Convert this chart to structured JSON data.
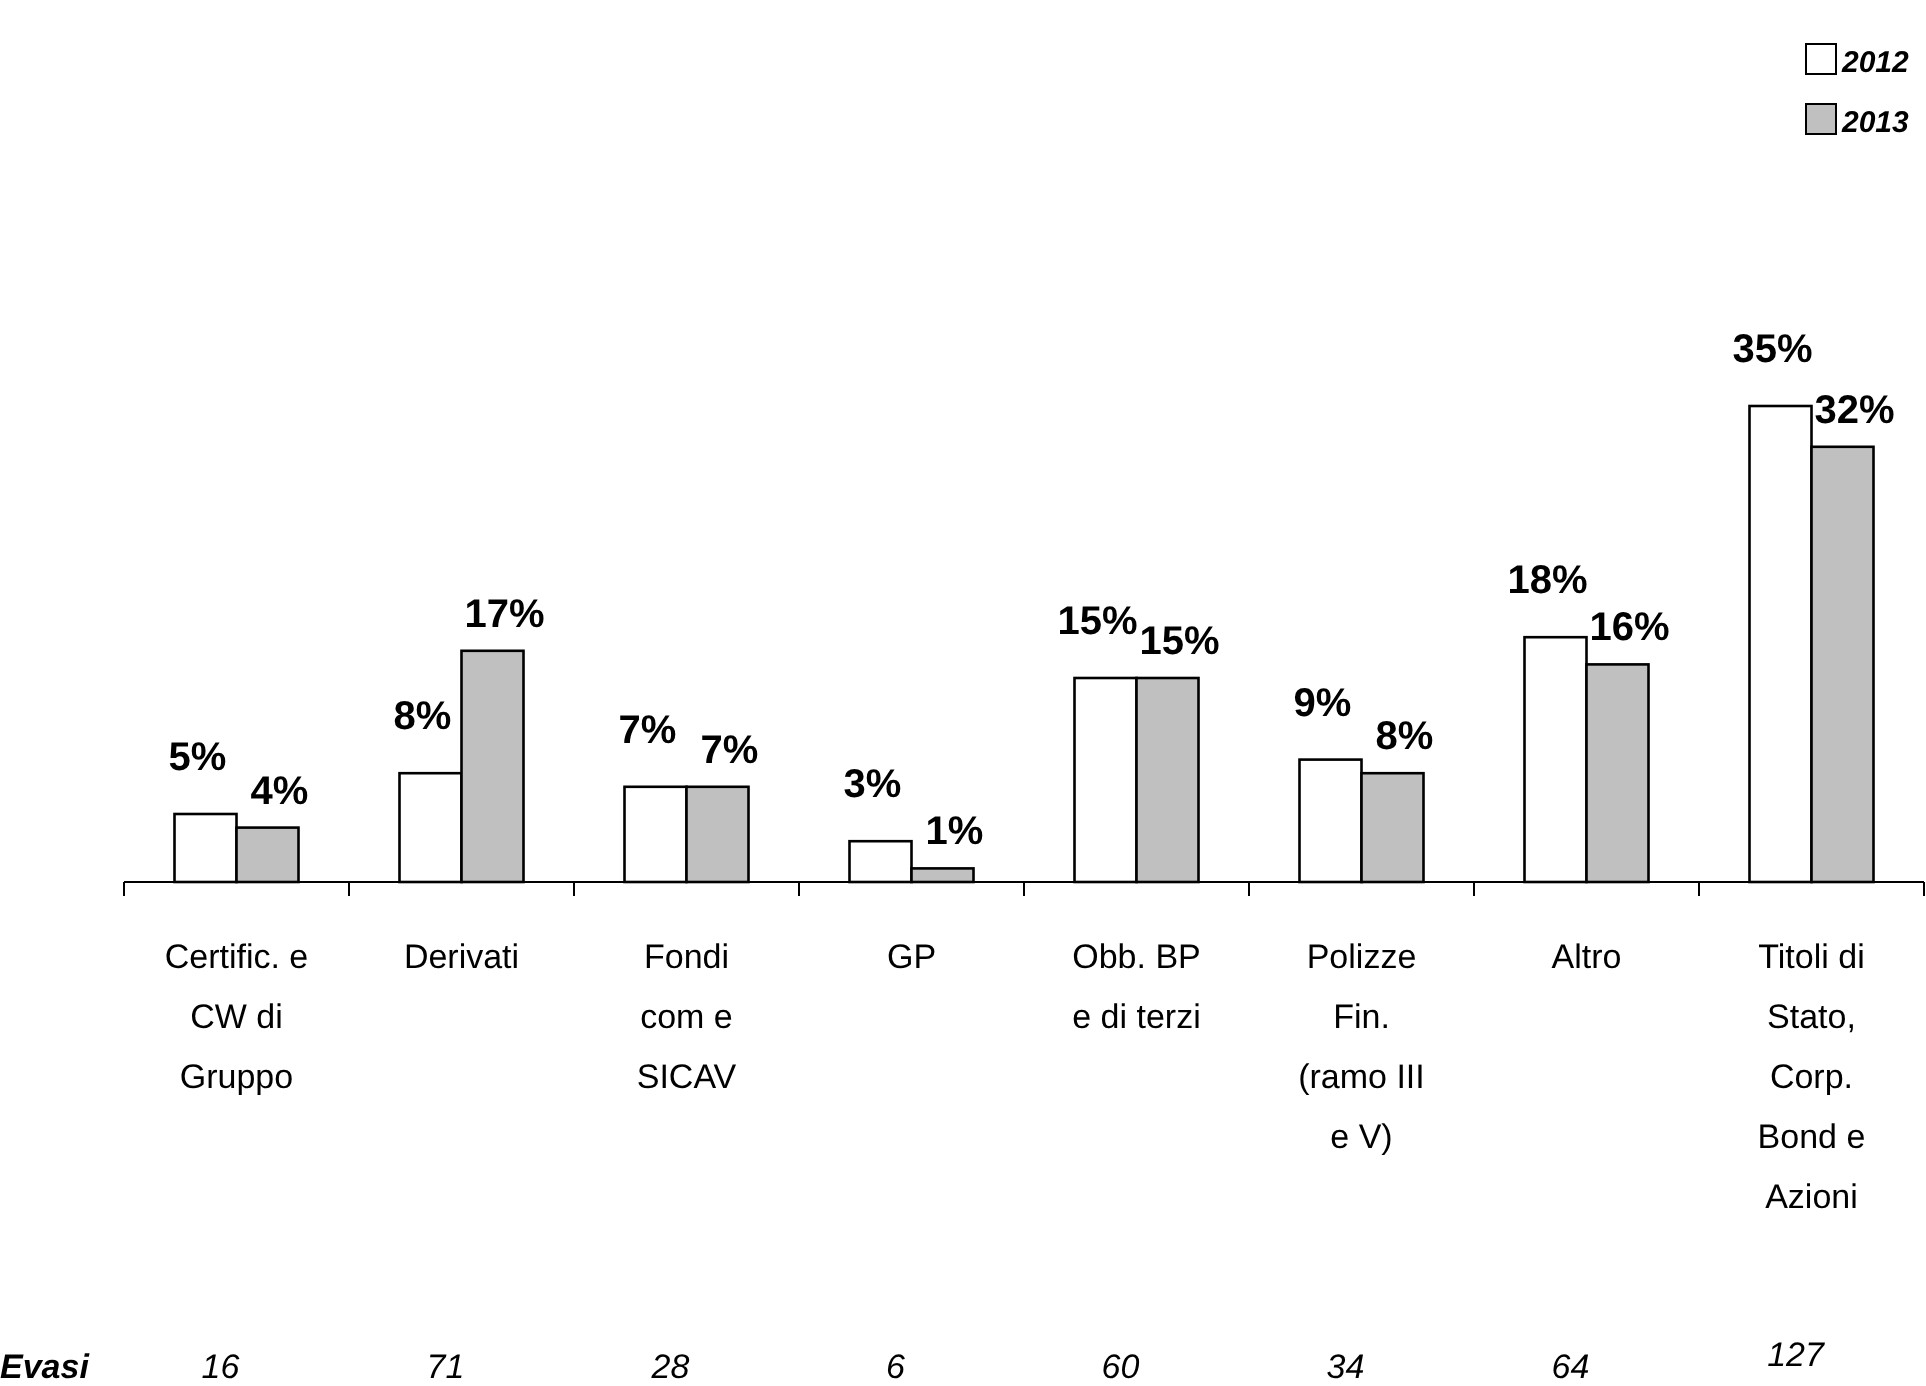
{
  "chart_data": {
    "type": "bar",
    "categories": [
      "Certific. e\nCW di\nGruppo",
      "Derivati",
      "Fondi\ncom e\nSICAV",
      "GP",
      "Obb. BP\ne di terzi",
      "Polizze\nFin.\n(ramo III\ne V)",
      "Altro",
      "Titoli di\nStato,\nCorp.\nBond e\nAzioni"
    ],
    "series": [
      {
        "name": "2012",
        "color": "#ffffff",
        "values": [
          5,
          8,
          7,
          3,
          15,
          9,
          18,
          35
        ],
        "value_labels": [
          "5%",
          "8%",
          "7%",
          "3%",
          "15%",
          "9%",
          "18%",
          "35%"
        ]
      },
      {
        "name": "2013",
        "color": "#c0c0c0",
        "values": [
          4,
          17,
          7,
          1,
          15,
          8,
          16,
          32
        ],
        "value_labels": [
          "4%",
          "17%",
          "7%",
          "1%",
          "15%",
          "8%",
          "16%",
          "32%"
        ]
      }
    ],
    "annotations": [
      "Evasi",
      "16",
      "71",
      "28",
      "6",
      "60",
      "34",
      "64",
      "127"
    ],
    "legend": "top right"
  }
}
